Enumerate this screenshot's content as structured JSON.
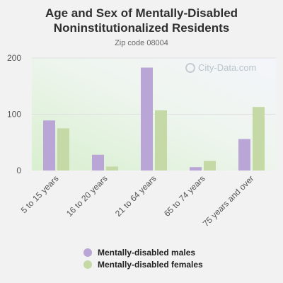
{
  "header": {
    "title_line1": "Age and Sex of Mentally-Disabled",
    "title_line2": "Noninstitutionalized Residents",
    "subtitle": "Zip code 08004"
  },
  "watermark": "City-Data.com",
  "colors": {
    "males": "#b9a6d6",
    "females": "#c5d9a6",
    "gridline": "#e0e0e0"
  },
  "chart_data": {
    "type": "bar",
    "title": "Age and Sex of Mentally-Disabled Noninstitutionalized Residents",
    "subtitle": "Zip code 08004",
    "categories": [
      "5 to 15 years",
      "16 to 20 years",
      "21 to 64 years",
      "65 to 74 years",
      "75 years and over"
    ],
    "series": [
      {
        "name": "Mentally-disabled males",
        "values": [
          89,
          28,
          183,
          6,
          56
        ]
      },
      {
        "name": "Mentally-disabled females",
        "values": [
          75,
          7,
          107,
          17,
          113
        ]
      }
    ],
    "ylim": [
      0,
      200
    ],
    "yticks": [
      0,
      100,
      200
    ],
    "grid": true,
    "legend": "bottom"
  }
}
